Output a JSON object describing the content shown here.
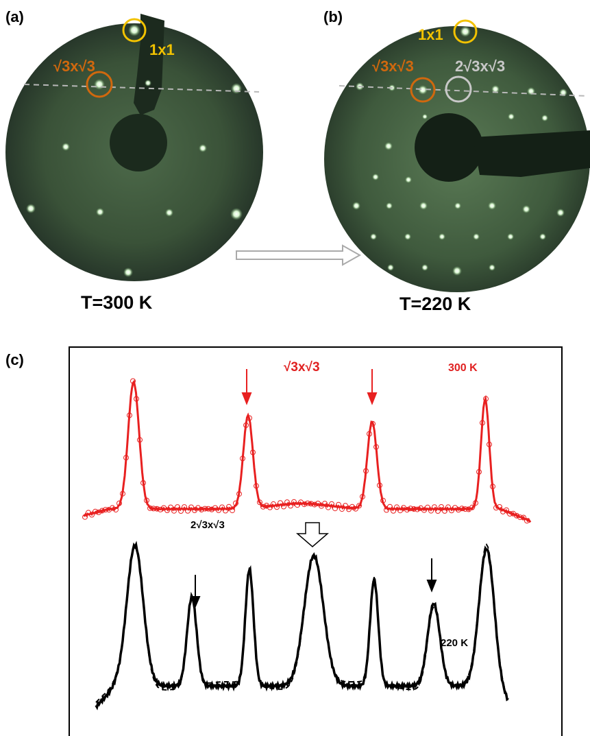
{
  "panel_a": {
    "label": "(a)",
    "spot_1x1": "1x1",
    "spot_r3": "√3x√3",
    "temperature": "T=300 K"
  },
  "panel_b": {
    "label": "(b)",
    "spot_1x1": "1x1",
    "spot_r3": "√3x√3",
    "spot_2r3": "2√3x√3",
    "temperature": "T=220 K"
  },
  "panel_c": {
    "label": "(c)",
    "top_title": "√3x√3",
    "top_temperature": "300 K",
    "bottom_title": "2√3x√3",
    "bottom_temperature": "220 K"
  }
}
